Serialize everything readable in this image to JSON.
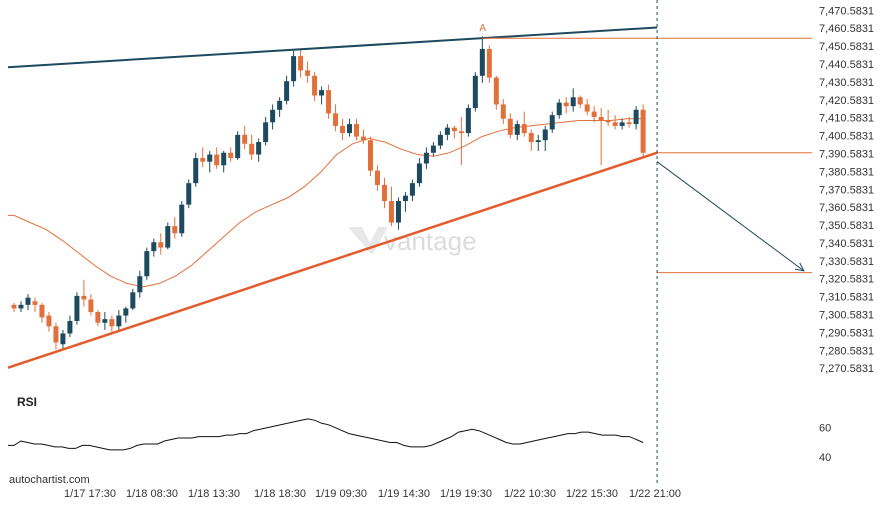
{
  "chart_data": {
    "type": "candlestick",
    "instrument_note": "",
    "y_ticks": [
      "7,470.5831",
      "7,460.5831",
      "7,450.5831",
      "7,440.5831",
      "7,430.5831",
      "7,420.5831",
      "7,410.5831",
      "7,400.5831",
      "7,390.5831",
      "7,380.5831",
      "7,370.5831",
      "7,360.5831",
      "7,350.5831",
      "7,340.5831",
      "7,330.5831",
      "7,320.5831",
      "7,310.5831",
      "7,300.5831",
      "7,290.5831",
      "7,280.5831",
      "7,270.5831"
    ],
    "x_ticks": [
      "1/17 17:30",
      "1/18 08:30",
      "1/18 13:30",
      "1/18 18:30",
      "1/19 09:30",
      "1/19 14:30",
      "1/19 19:30",
      "1/22 10:30",
      "1/22 15:30",
      "1/22 21:00"
    ],
    "ylim": [
      7264,
      7473
    ],
    "candles": [
      [
        7306,
        7307,
        7302,
        7304
      ],
      [
        7304,
        7308,
        7302,
        7306
      ],
      [
        7306,
        7312,
        7303,
        7310
      ],
      [
        7308,
        7310,
        7302,
        7306
      ],
      [
        7306,
        7307,
        7296,
        7299
      ],
      [
        7300,
        7302,
        7291,
        7294
      ],
      [
        7294,
        7296,
        7281,
        7285
      ],
      [
        7284,
        7292,
        7281,
        7290
      ],
      [
        7290,
        7300,
        7288,
        7297
      ],
      [
        7297,
        7313,
        7295,
        7311
      ],
      [
        7311,
        7320,
        7305,
        7309
      ],
      [
        7309,
        7312,
        7300,
        7302
      ],
      [
        7302,
        7303,
        7294,
        7296
      ],
      [
        7296,
        7302,
        7292,
        7298
      ],
      [
        7298,
        7300,
        7291,
        7294
      ],
      [
        7294,
        7303,
        7292,
        7300
      ],
      [
        7300,
        7305,
        7296,
        7304
      ],
      [
        7304,
        7315,
        7303,
        7313
      ],
      [
        7313,
        7325,
        7310,
        7322
      ],
      [
        7322,
        7338,
        7320,
        7336
      ],
      [
        7336,
        7343,
        7333,
        7341
      ],
      [
        7341,
        7346,
        7334,
        7338
      ],
      [
        7338,
        7352,
        7337,
        7350
      ],
      [
        7350,
        7355,
        7343,
        7346
      ],
      [
        7346,
        7364,
        7344,
        7362
      ],
      [
        7362,
        7376,
        7360,
        7374
      ],
      [
        7374,
        7391,
        7372,
        7388
      ],
      [
        7388,
        7394,
        7383,
        7386
      ],
      [
        7386,
        7392,
        7380,
        7390
      ],
      [
        7390,
        7394,
        7382,
        7384
      ],
      [
        7384,
        7392,
        7380,
        7391
      ],
      [
        7391,
        7394,
        7386,
        7388
      ],
      [
        7388,
        7403,
        7387,
        7401
      ],
      [
        7401,
        7406,
        7393,
        7396
      ],
      [
        7396,
        7401,
        7387,
        7390
      ],
      [
        7390,
        7399,
        7386,
        7397
      ],
      [
        7397,
        7411,
        7395,
        7408
      ],
      [
        7408,
        7418,
        7404,
        7415
      ],
      [
        7415,
        7422,
        7411,
        7420
      ],
      [
        7420,
        7434,
        7418,
        7431
      ],
      [
        7431,
        7448,
        7428,
        7445
      ],
      [
        7445,
        7449,
        7433,
        7437
      ],
      [
        7437,
        7442,
        7430,
        7434
      ],
      [
        7434,
        7436,
        7420,
        7423
      ],
      [
        7423,
        7428,
        7418,
        7426
      ],
      [
        7426,
        7429,
        7410,
        7413
      ],
      [
        7413,
        7418,
        7403,
        7406
      ],
      [
        7406,
        7410,
        7398,
        7402
      ],
      [
        7402,
        7410,
        7400,
        7407
      ],
      [
        7407,
        7410,
        7398,
        7400
      ],
      [
        7400,
        7404,
        7396,
        7398
      ],
      [
        7398,
        7400,
        7378,
        7381
      ],
      [
        7381,
        7384,
        7370,
        7373
      ],
      [
        7373,
        7377,
        7360,
        7364
      ],
      [
        7364,
        7372,
        7350,
        7352
      ],
      [
        7352,
        7366,
        7348,
        7364
      ],
      [
        7364,
        7369,
        7358,
        7367
      ],
      [
        7367,
        7376,
        7364,
        7374
      ],
      [
        7374,
        7388,
        7372,
        7385
      ],
      [
        7385,
        7394,
        7382,
        7391
      ],
      [
        7391,
        7397,
        7389,
        7395
      ],
      [
        7395,
        7403,
        7393,
        7401
      ],
      [
        7401,
        7407,
        7398,
        7405
      ],
      [
        7405,
        7406,
        7399,
        7403
      ],
      [
        7403,
        7411,
        7384,
        7402
      ],
      [
        7402,
        7418,
        7400,
        7416
      ],
      [
        7416,
        7436,
        7414,
        7434
      ],
      [
        7434,
        7456,
        7430,
        7449
      ],
      [
        7449,
        7451,
        7430,
        7433
      ],
      [
        7433,
        7434,
        7415,
        7418
      ],
      [
        7418,
        7421,
        7407,
        7410
      ],
      [
        7410,
        7413,
        7399,
        7401
      ],
      [
        7401,
        7409,
        7398,
        7407
      ],
      [
        7407,
        7414,
        7400,
        7402
      ],
      [
        7402,
        7404,
        7392,
        7397
      ],
      [
        7397,
        7401,
        7392,
        7398
      ],
      [
        7398,
        7406,
        7392,
        7404
      ],
      [
        7404,
        7414,
        7402,
        7412
      ],
      [
        7412,
        7421,
        7410,
        7419
      ],
      [
        7419,
        7422,
        7413,
        7417
      ],
      [
        7417,
        7427,
        7414,
        7422
      ],
      [
        7422,
        7423,
        7416,
        7418
      ],
      [
        7418,
        7421,
        7412,
        7414
      ],
      [
        7414,
        7417,
        7408,
        7411
      ],
      [
        7411,
        7416,
        7384,
        7409
      ],
      [
        7409,
        7415,
        7406,
        7408
      ],
      [
        7408,
        7412,
        7404,
        7406
      ],
      [
        7406,
        7410,
        7404,
        7408
      ],
      [
        7408,
        7411,
        7405,
        7407
      ],
      [
        7407,
        7417,
        7404,
        7415
      ],
      [
        7415,
        7418,
        7388,
        7391
      ]
    ],
    "moving_average": [
      7356,
      7352,
      7348,
      7342,
      7335,
      7328,
      7322,
      7318,
      7316,
      7318,
      7322,
      7328,
      7336,
      7344,
      7352,
      7358,
      7362,
      7366,
      7372,
      7380,
      7390,
      7396,
      7399,
      7397,
      7393,
      7390,
      7389,
      7391,
      7395,
      7400,
      7403,
      7405,
      7406,
      7407,
      7408,
      7409,
      7409,
      7409,
      7410,
      7410
    ],
    "resistance_line": {
      "from": [
        0,
        7439
      ],
      "to": [
        92,
        7461
      ]
    },
    "support_line": {
      "from": [
        0,
        7272
      ],
      "to": [
        92,
        7391
      ]
    },
    "peak_marker": {
      "label": "A",
      "index": 67,
      "value": 7455
    },
    "horizontal_levels": [
      {
        "from_index": 67,
        "value": 7455
      },
      {
        "from_index": 92,
        "value": 7391
      },
      {
        "from_index": 92,
        "value": 7324
      }
    ],
    "forecast_arrow": {
      "from": [
        92,
        7386
      ],
      "to": [
        113,
        7325
      ]
    },
    "last_bar_line_index": 92,
    "rsi": {
      "title": "RSI",
      "ticks": [
        "60",
        "40"
      ],
      "ylim": [
        30,
        72
      ],
      "values": [
        48,
        51,
        50,
        49,
        49,
        48,
        47,
        47,
        46,
        46,
        48,
        48,
        47,
        46,
        45,
        45,
        45,
        46,
        48,
        49,
        49,
        49,
        51,
        52,
        53,
        53,
        53,
        54,
        54,
        54,
        54,
        55,
        55,
        56,
        56,
        58,
        59,
        60,
        61,
        62,
        63,
        64,
        65,
        66,
        65,
        63,
        62,
        60,
        58,
        56,
        55,
        54,
        53,
        52,
        51,
        50,
        50,
        48,
        47,
        47,
        47,
        48,
        50,
        52,
        54,
        57,
        58,
        59,
        58,
        56,
        54,
        52,
        50,
        49,
        49,
        50,
        51,
        52,
        53,
        54,
        55,
        56,
        56,
        57,
        57,
        56,
        55,
        55,
        55,
        54,
        54,
        52,
        50
      ]
    }
  },
  "labels": {
    "rsi_title": "RSI",
    "credit": "autochartist.com",
    "peak": "A",
    "watermark": "vantage"
  },
  "colors": {
    "bull": "#1d4a5e",
    "bear": "#e2703a",
    "resistance": "#1d4a5e",
    "support": "#e55a2b",
    "ma": "#e2703a",
    "arrow": "#1d4a5e",
    "rsi": "#111111"
  }
}
